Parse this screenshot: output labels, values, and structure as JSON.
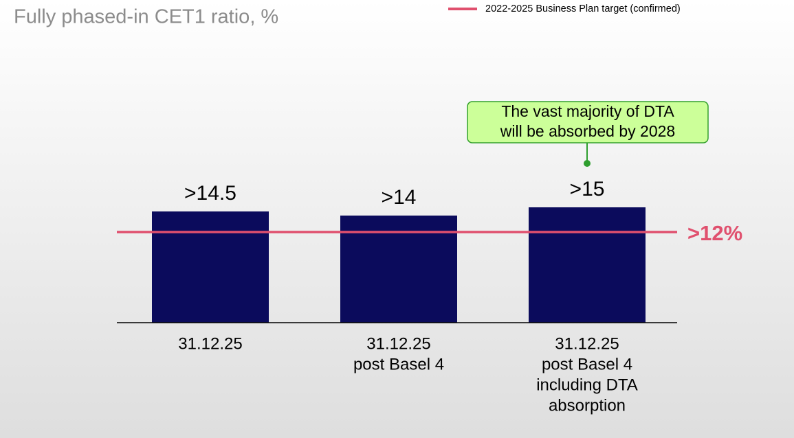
{
  "chart_data": {
    "type": "bar",
    "title": "Fully phased-in CET1 ratio, %",
    "categories": [
      [
        "31.12.25"
      ],
      [
        "31.12.25",
        "post Basel 4"
      ],
      [
        "31.12.25",
        "post Basel 4",
        "including DTA",
        "absorption"
      ]
    ],
    "values": [
      14.5,
      14,
      15
    ],
    "value_labels": [
      ">14.5",
      ">14",
      ">15"
    ],
    "color": "#0b0b5c",
    "ylim": [
      1,
      16
    ],
    "target": {
      "name": "2022-2025 Business Plan target (confirmed)",
      "value": 12,
      "value_label": ">12%",
      "color": "#e0506e"
    },
    "annotation": {
      "lines": [
        "The vast majority of DTA",
        "will be absorbed by 2028"
      ],
      "category": 2
    }
  }
}
